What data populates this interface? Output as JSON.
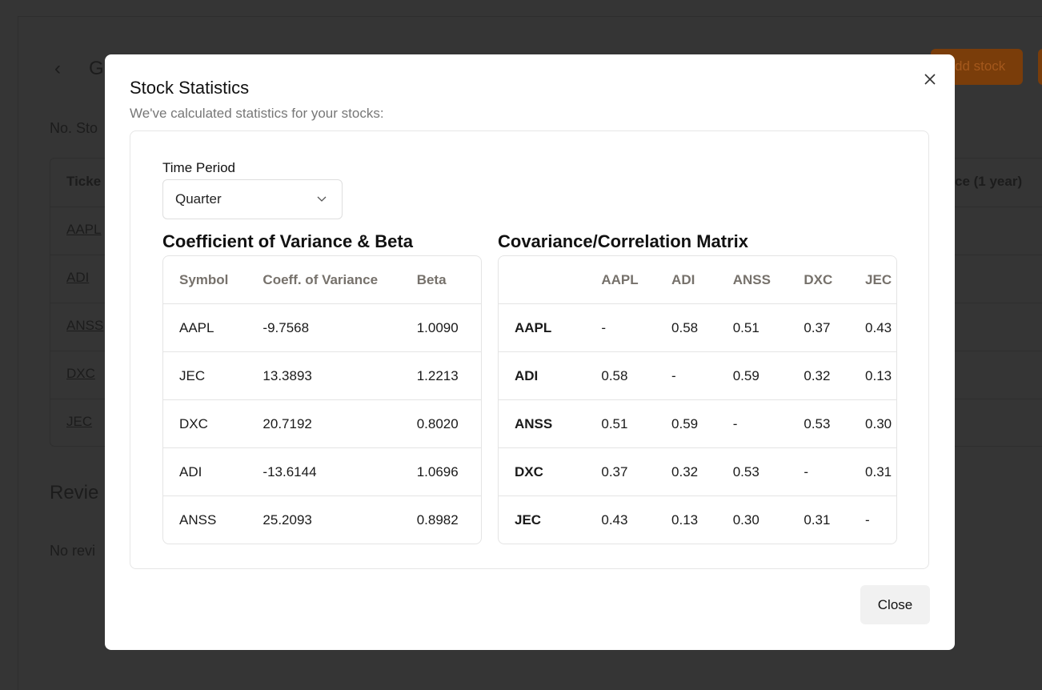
{
  "background": {
    "heading": "G",
    "add_button": "dd stock",
    "count_label": "No. Sto",
    "table_header": [
      "Ticke",
      "ce (1 year)"
    ],
    "tickers": [
      "AAPL",
      "ADI",
      "ANSS",
      "DXC",
      "JEC"
    ],
    "reviews_heading": "Revie",
    "reviews_empty": "No revi"
  },
  "modal": {
    "title": "Stock Statistics",
    "subtitle": "We've calculated statistics for your stocks:",
    "time_period": {
      "label": "Time Period",
      "value": "Quarter"
    },
    "variance_table": {
      "title": "Coefficient of Variance & Beta",
      "columns": [
        "Symbol",
        "Coeff. of Variance",
        "Beta"
      ],
      "rows": [
        [
          "AAPL",
          "-9.7568",
          "1.0090"
        ],
        [
          "JEC",
          "13.3893",
          "1.2213"
        ],
        [
          "DXC",
          "20.7192",
          "0.8020"
        ],
        [
          "ADI",
          "-13.6144",
          "1.0696"
        ],
        [
          "ANSS",
          "25.2093",
          "0.8982"
        ]
      ]
    },
    "matrix": {
      "title": "Covariance/Correlation Matrix",
      "columns": [
        "AAPL",
        "ADI",
        "ANSS",
        "DXC",
        "JEC"
      ],
      "rows": [
        {
          "label": "AAPL",
          "values": [
            "-",
            "0.58",
            "0.51",
            "0.37",
            "0.43"
          ]
        },
        {
          "label": "ADI",
          "values": [
            "0.58",
            "-",
            "0.59",
            "0.32",
            "0.13"
          ]
        },
        {
          "label": "ANSS",
          "values": [
            "0.51",
            "0.59",
            "-",
            "0.53",
            "0.30"
          ]
        },
        {
          "label": "DXC",
          "values": [
            "0.37",
            "0.32",
            "0.53",
            "-",
            "0.31"
          ]
        },
        {
          "label": "JEC",
          "values": [
            "0.43",
            "0.13",
            "0.30",
            "0.31",
            "-"
          ]
        }
      ]
    },
    "close_button": "Close"
  }
}
